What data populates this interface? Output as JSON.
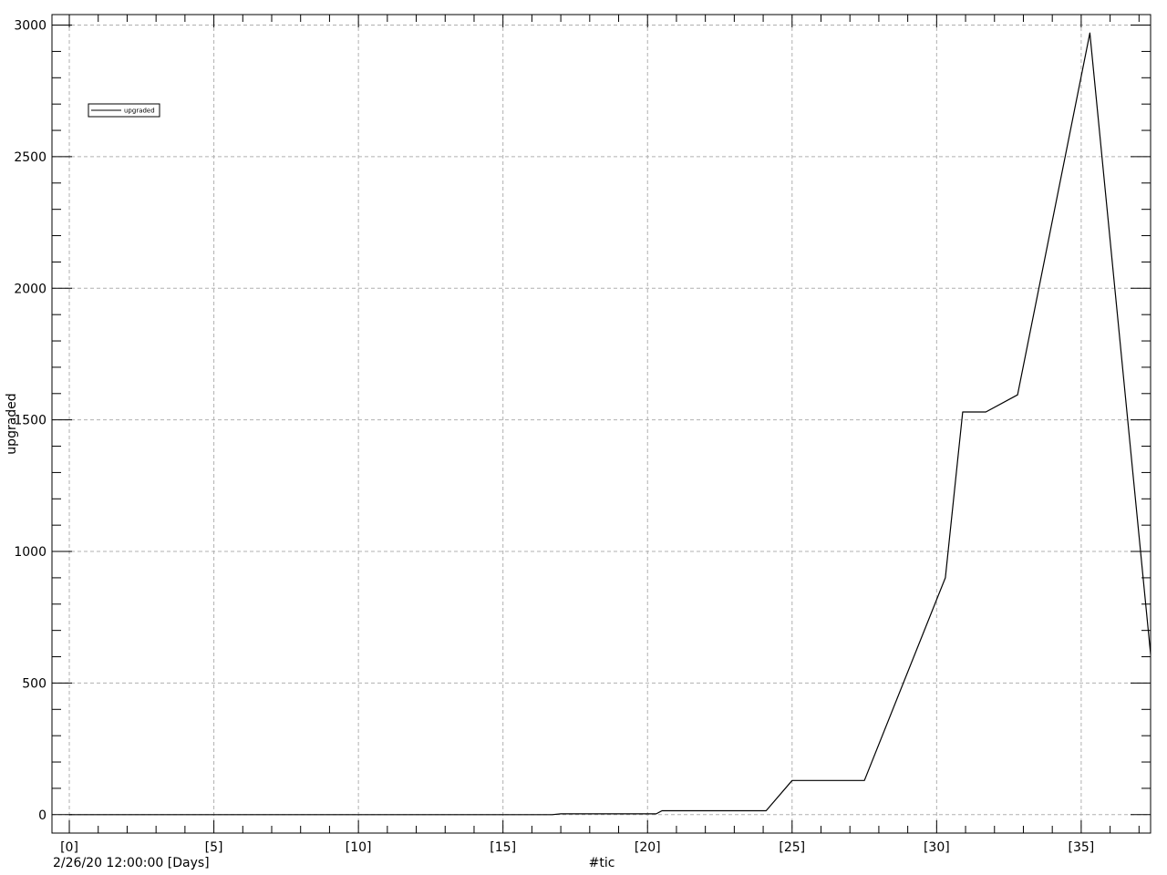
{
  "chart_data": {
    "type": "line",
    "title": "",
    "xlabel": "#tic",
    "ylabel": "upgraded",
    "x_origin_label": "2/26/20 12:00:00 [Days]",
    "xlim": [
      -0.6,
      37.4
    ],
    "ylim": [
      -70,
      3040
    ],
    "x_ticks": [
      0,
      5,
      10,
      15,
      20,
      25,
      30,
      35
    ],
    "x_tick_labels": [
      "[0]",
      "[5]",
      "[10]",
      "[15]",
      "[20]",
      "[25]",
      "[30]",
      "[35]"
    ],
    "y_ticks": [
      0,
      500,
      1000,
      1500,
      2000,
      2500,
      3000
    ],
    "y_tick_labels": [
      "0",
      "500",
      "1000",
      "1500",
      "2000",
      "2500",
      "3000"
    ],
    "grid": true,
    "legend_position": "top-left",
    "series": [
      {
        "name": "upgraded",
        "color": "#000000",
        "x": [
          0,
          16.7,
          17.0,
          20.3,
          20.5,
          24.1,
          25.0,
          26.1,
          27.5,
          30.3,
          30.9,
          31.7,
          32.8,
          35.3,
          37.4
        ],
        "y": [
          0,
          0,
          3,
          3,
          15,
          15,
          130,
          130,
          130,
          900,
          1530,
          1530,
          1595,
          2970,
          610
        ]
      }
    ]
  }
}
